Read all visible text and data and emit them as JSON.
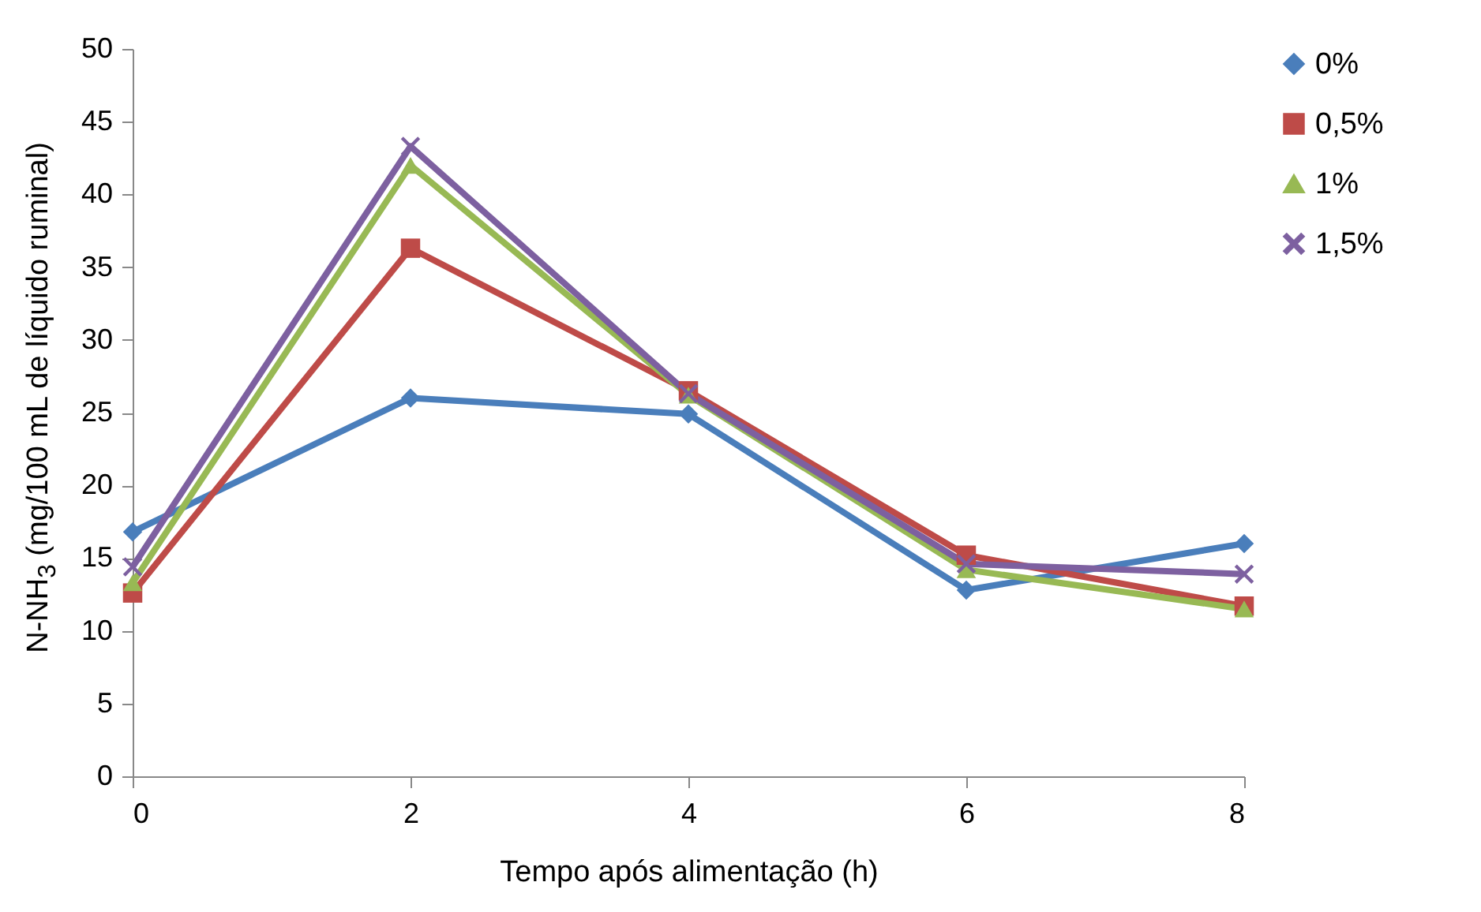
{
  "chart_data": {
    "type": "line",
    "xlabel": "Tempo após alimentação (h)",
    "ylabel": "N-NH$_{3}$ (mg/100 mL de líquido ruminal)",
    "x": [
      0,
      2,
      4,
      6,
      8
    ],
    "xlim": [
      0,
      8
    ],
    "xticks": [
      0,
      2,
      4,
      6,
      8
    ],
    "ylim": [
      0,
      50
    ],
    "yticks": [
      0,
      5,
      10,
      15,
      20,
      25,
      30,
      35,
      40,
      45,
      50
    ],
    "grid": false,
    "legend": "right",
    "line_style": "solid",
    "series": [
      {
        "name": "0%",
        "color": "#4a7ebb",
        "marker": "diamond",
        "values": [
          16.8,
          26.0,
          24.9,
          12.8,
          16.0
        ]
      },
      {
        "name": "0,5%",
        "color": "#be4b48",
        "marker": "square",
        "values": [
          12.6,
          36.3,
          26.5,
          15.2,
          11.7
        ]
      },
      {
        "name": "1%",
        "color": "#98b954",
        "marker": "triangle",
        "values": [
          13.3,
          42.0,
          26.2,
          14.2,
          11.5
        ]
      },
      {
        "name": "1,5%",
        "color": "#7d60a0",
        "marker": "cross",
        "values": [
          14.4,
          43.3,
          26.3,
          14.6,
          13.9
        ]
      }
    ]
  }
}
